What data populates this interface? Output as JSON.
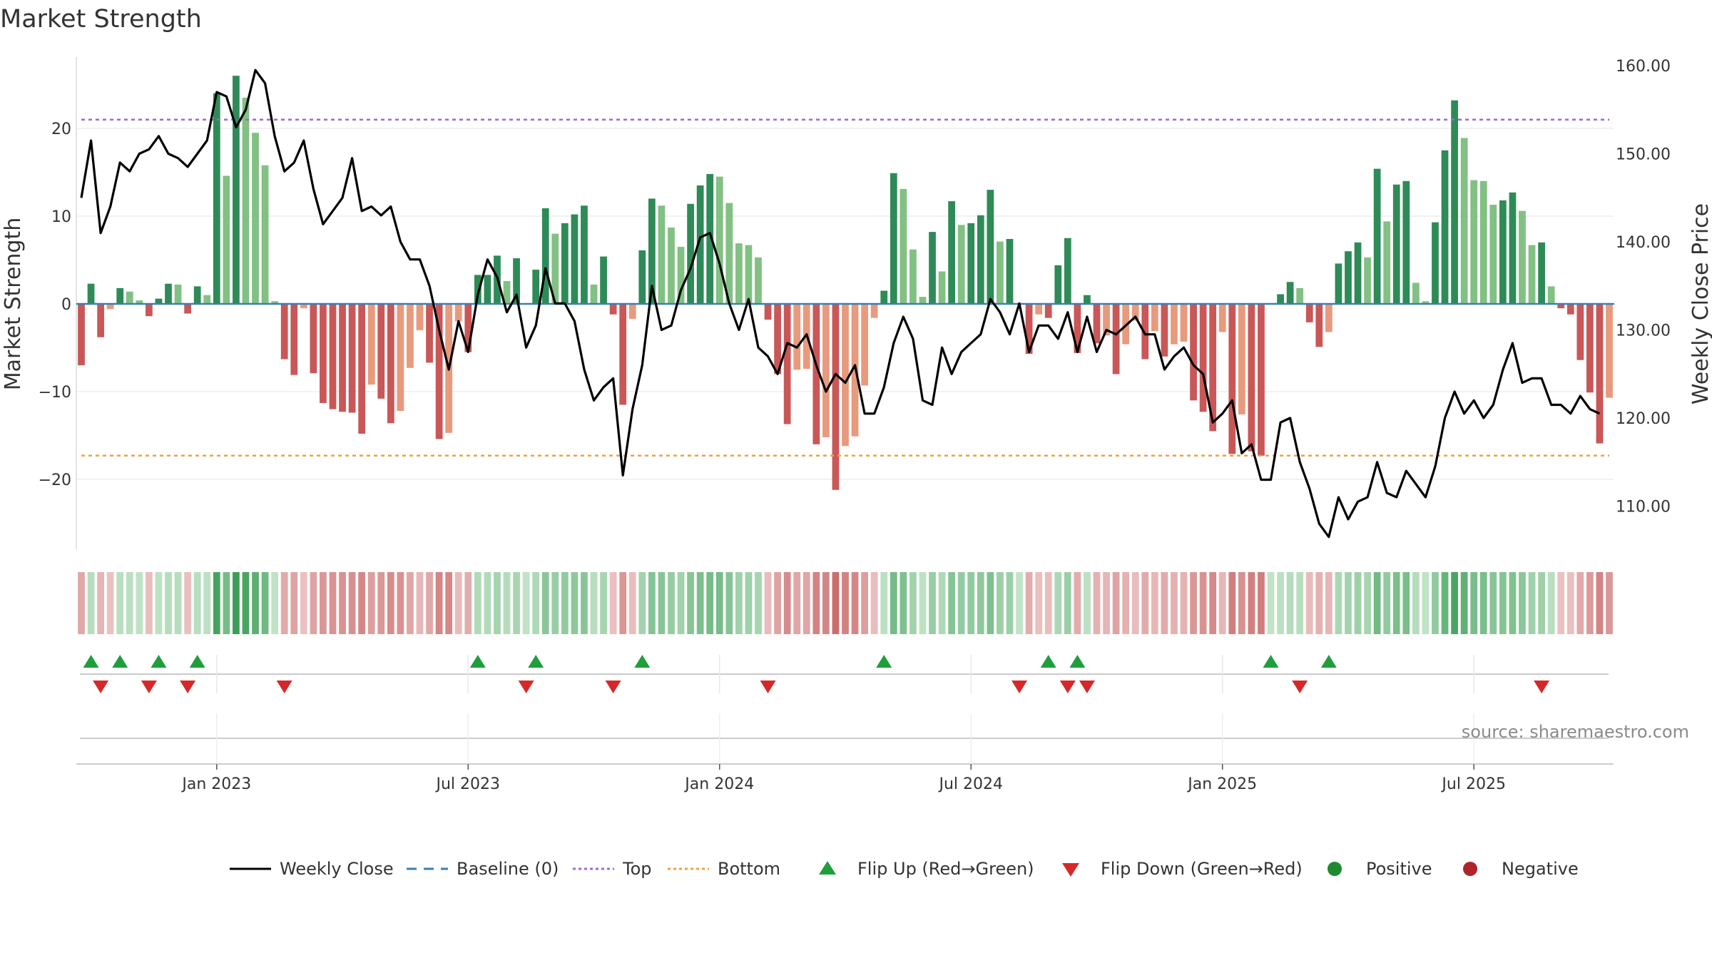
{
  "chart_data": {
    "type": "bar",
    "title": "Market Strength",
    "ylabel_left": "Market Strength",
    "ylabel_right": "Weekly Close Price",
    "left_ylim": [
      -28,
      28
    ],
    "right_ylim": [
      105,
      162
    ],
    "left_yticks": [
      {
        "value": 20,
        "label": "20"
      },
      {
        "value": 10,
        "label": "10"
      },
      {
        "value": 0,
        "label": "0"
      },
      {
        "value": -10,
        "label": "−10"
      },
      {
        "value": -20,
        "label": "−20"
      }
    ],
    "right_yticks": [
      {
        "value": 160,
        "label": "160.00"
      },
      {
        "value": 150,
        "label": "150.00"
      },
      {
        "value": 140,
        "label": "140.00"
      },
      {
        "value": 130,
        "label": "130.00"
      },
      {
        "value": 120,
        "label": "120.00"
      },
      {
        "value": 110,
        "label": "110.00"
      }
    ],
    "x_ticks": [
      {
        "index": 14,
        "label": "Jan 2023"
      },
      {
        "index": 40,
        "label": "Jul 2023"
      },
      {
        "index": 66,
        "label": "Jan 2024"
      },
      {
        "index": 92,
        "label": "Jul 2024"
      },
      {
        "index": 118,
        "label": "Jan 2025"
      },
      {
        "index": 144,
        "label": "Jul 2025"
      }
    ],
    "top_level": 21,
    "bottom_level": -17.3,
    "strength": [
      -7,
      2.3,
      -3.8,
      -0.6,
      1.8,
      1.4,
      0.4,
      -1.4,
      0.6,
      2.3,
      2.2,
      -1.1,
      2,
      1,
      24,
      14.6,
      26,
      23.5,
      19.5,
      15.8,
      0.3,
      -6.3,
      -8.1,
      -0.5,
      -7.9,
      -11.3,
      -12,
      -12.3,
      -12.4,
      -14.8,
      -9.2,
      -10.8,
      -13.6,
      -12.2,
      -7.3,
      -3,
      -6.7,
      -15.4,
      -14.7,
      -2,
      -5.5,
      3.3,
      3.3,
      5.5,
      2.6,
      5.2,
      0,
      3.9,
      10.9,
      8,
      9.2,
      10.2,
      11.2,
      2.2,
      5.4,
      -1.2,
      -11.5,
      -1.7,
      6.1,
      12,
      11.2,
      8.7,
      6.5,
      11.4,
      13.5,
      14.8,
      14.5,
      11.5,
      6.9,
      6.7,
      5.3,
      -1.8,
      -8,
      -13.7,
      -7.5,
      -7.4,
      -16,
      -15.2,
      -21.2,
      -16.2,
      -15.1,
      -9.3,
      -1.6,
      1.5,
      14.9,
      13.1,
      6.2,
      0.8,
      8.2,
      3.7,
      11.7,
      9,
      9.2,
      10.1,
      13,
      7.1,
      7.4,
      0,
      -5.7,
      -1.2,
      -1.6,
      4.4,
      7.5,
      -5.6,
      1,
      -4.5,
      -3.6,
      -8,
      -4.6,
      -1.9,
      -6.3,
      -3.1,
      -6,
      -4.6,
      -4.3,
      -11,
      -12.3,
      -14.5,
      -3.2,
      -17.1,
      -12.6,
      -16.8,
      -17.3,
      0,
      1.1,
      2.5,
      1.8,
      -2.1,
      -4.9,
      -3.2,
      4.6,
      6,
      7,
      5.3,
      15.4,
      9.4,
      13.6,
      14,
      2.4,
      0.3,
      9.3,
      17.5,
      23.2,
      18.9,
      14.1,
      14,
      11.3,
      11.8,
      12.7,
      10.6,
      6.7,
      7,
      2,
      -0.5,
      -1.2,
      -6.4,
      -10.1,
      -15.9,
      -10.7
    ],
    "close": [
      145,
      151.5,
      141,
      144,
      149,
      148,
      150,
      150.5,
      152,
      150,
      149.5,
      148.5,
      150,
      151.5,
      157,
      156.5,
      153,
      155,
      159.5,
      158,
      152,
      148,
      149,
      151.5,
      146,
      142,
      143.5,
      145,
      149.5,
      143.5,
      144,
      143,
      144,
      140,
      138,
      138,
      135,
      130,
      125.5,
      131,
      127.5,
      134,
      138,
      136,
      132,
      134,
      128,
      130.5,
      137,
      133,
      133,
      131,
      125.5,
      122,
      123.5,
      124.5,
      113.5,
      121,
      126,
      135,
      130,
      130.5,
      134.5,
      137,
      140.5,
      141,
      137.5,
      133,
      130,
      133.5,
      128,
      127,
      125,
      128.5,
      128,
      129.5,
      126,
      123,
      125,
      124,
      126,
      120.5,
      120.5,
      123.5,
      128.5,
      131.5,
      129,
      122,
      121.5,
      128,
      125,
      127.5,
      128.5,
      129.5,
      133.5,
      132,
      129.5,
      133,
      127.5,
      130.5,
      130.5,
      129,
      132,
      127.5,
      131.5,
      127.5,
      130,
      129.5,
      130.5,
      131.5,
      129.5,
      129.5,
      125.5,
      127,
      128,
      126,
      125,
      119.5,
      120.5,
      122,
      116,
      117,
      113,
      113,
      119.5,
      120,
      115,
      112,
      108,
      106.5,
      111,
      108.5,
      110.5,
      111,
      115,
      111.5,
      111,
      114,
      112.5,
      111,
      114.5,
      120,
      123,
      120.5,
      122,
      120,
      121.5,
      125.5,
      128.5,
      124,
      124.5,
      124.5,
      121.5,
      121.5,
      120.5,
      122.5,
      121,
      120.5
    ],
    "flip_up_indices": [
      1,
      4,
      8,
      12,
      41,
      47,
      58,
      83,
      100,
      103,
      123,
      129
    ],
    "flip_down_indices": [
      2,
      7,
      11,
      21,
      46,
      55,
      71,
      97,
      102,
      104,
      126,
      151
    ],
    "legend": [
      {
        "type": "line",
        "color": "#000000",
        "label": "Weekly Close"
      },
      {
        "type": "dash",
        "color": "#3a7fb6",
        "label": "Baseline (0)"
      },
      {
        "type": "dot",
        "color": "#9b6ad6",
        "label": "Top"
      },
      {
        "type": "dot",
        "color": "#f0a040",
        "label": "Bottom"
      },
      {
        "type": "tri-up",
        "color": "#1f9e3c",
        "label": "Flip Up (Red→Green)"
      },
      {
        "type": "tri-down",
        "color": "#d62828",
        "label": "Flip Down (Green→Red)"
      },
      {
        "type": "circle",
        "color": "#1f8a2f",
        "label": "Positive"
      },
      {
        "type": "circle",
        "color": "#b0222c",
        "label": "Negative"
      }
    ],
    "source_text": "source: sharemaestro.com",
    "colors": {
      "pos_strong": "#2e8b57",
      "pos_weak": "#82c083",
      "neg_strong": "#c95757",
      "neg_weak": "#e89a7d",
      "close_line": "#000000",
      "baseline": "#3a7fb6",
      "top_line": "#9b6ad6",
      "bottom_line": "#f0a040"
    }
  }
}
